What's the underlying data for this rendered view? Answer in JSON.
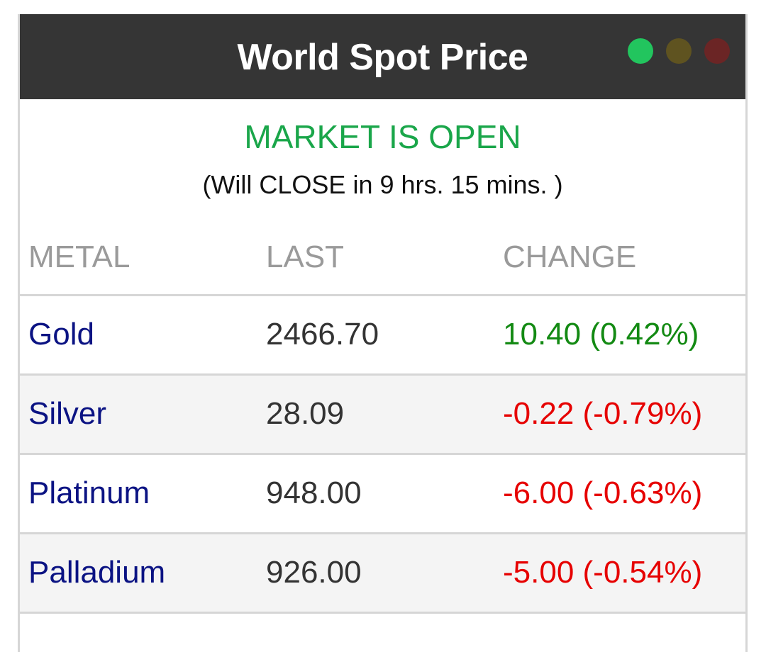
{
  "widget": {
    "title": "World Spot Price",
    "dots": [
      {
        "name": "green-dot",
        "color": "#22c55e"
      },
      {
        "name": "amber-dot",
        "color": "#5f5320"
      },
      {
        "name": "red-dot",
        "color": "#6b2525"
      }
    ]
  },
  "market": {
    "status": "MARKET IS OPEN",
    "status_color": "#1aa64a",
    "countdown": "(Will CLOSE in 9 hrs. 15 mins. )"
  },
  "table": {
    "headers": [
      "METAL",
      "LAST",
      "CHANGE"
    ],
    "rows": [
      {
        "metal": "Gold",
        "last": "2466.70",
        "change": "10.40 (0.42%)",
        "change_color": "#138a13"
      },
      {
        "metal": "Silver",
        "last": "28.09",
        "change": "-0.22 (-0.79%)",
        "change_color": "#e60000"
      },
      {
        "metal": "Platinum",
        "last": "948.00",
        "change": "-6.00 (-0.63%)",
        "change_color": "#e60000"
      },
      {
        "metal": "Palladium",
        "last": "926.00",
        "change": "-5.00 (-0.54%)",
        "change_color": "#e60000"
      }
    ]
  }
}
